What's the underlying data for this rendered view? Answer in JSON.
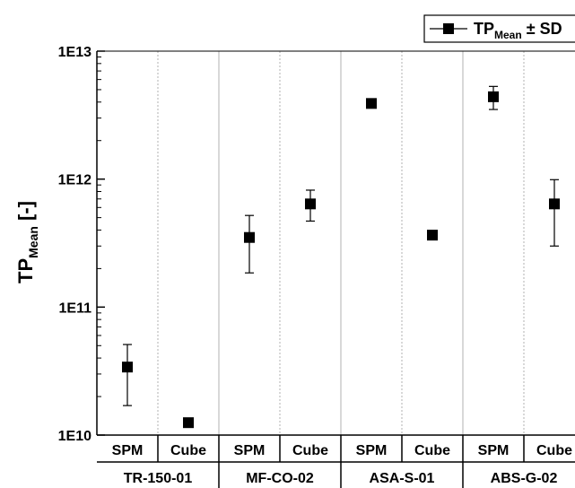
{
  "chart_data": {
    "type": "scatter",
    "yscale": "log",
    "ylim": [
      10000000000.0,
      10000000000000.0
    ],
    "y_ticks": [
      "1E10",
      "1E11",
      "1E12",
      "1E13"
    ],
    "ylabel": {
      "main": "TP",
      "sub": "Mean",
      "suffix": " [-]"
    },
    "legend": {
      "symbol": "square",
      "label_main": "TP",
      "label_sub": "Mean",
      "label_suffix": " ± SD",
      "position": "top-right"
    },
    "color": "#000000",
    "groups": [
      "TR-150-01",
      "MF-CO-02",
      "ASA-S-01",
      "ABS-G-02"
    ],
    "categories": [
      "SPM",
      "Cube",
      "SPM",
      "Cube",
      "SPM",
      "Cube",
      "SPM",
      "Cube"
    ],
    "series": [
      {
        "points": [
          {
            "group": "TR-150-01",
            "category": "SPM",
            "mean": 34000000000.0,
            "low": 17000000000.0,
            "high": 51000000000.0
          },
          {
            "group": "TR-150-01",
            "category": "Cube",
            "mean": 12500000000.0,
            "low": null,
            "high": null
          },
          {
            "group": "MF-CO-02",
            "category": "SPM",
            "mean": 350000000000.0,
            "low": 185000000000.0,
            "high": 520000000000.0
          },
          {
            "group": "MF-CO-02",
            "category": "Cube",
            "mean": 640000000000.0,
            "low": 470000000000.0,
            "high": 820000000000.0
          },
          {
            "group": "ASA-S-01",
            "category": "SPM",
            "mean": 3900000000000.0,
            "low": null,
            "high": null
          },
          {
            "group": "ASA-S-01",
            "category": "Cube",
            "mean": 365000000000.0,
            "low": null,
            "high": null
          },
          {
            "group": "ABS-G-02",
            "category": "SPM",
            "mean": 4400000000000.0,
            "low": 3500000000000.0,
            "high": 5300000000000.0
          },
          {
            "group": "ABS-G-02",
            "category": "Cube",
            "mean": 640000000000.0,
            "low": 300000000000.0,
            "high": 990000000000.0
          }
        ]
      }
    ],
    "grid": "vertical separators between categories (dotted) and groups (solid)"
  }
}
